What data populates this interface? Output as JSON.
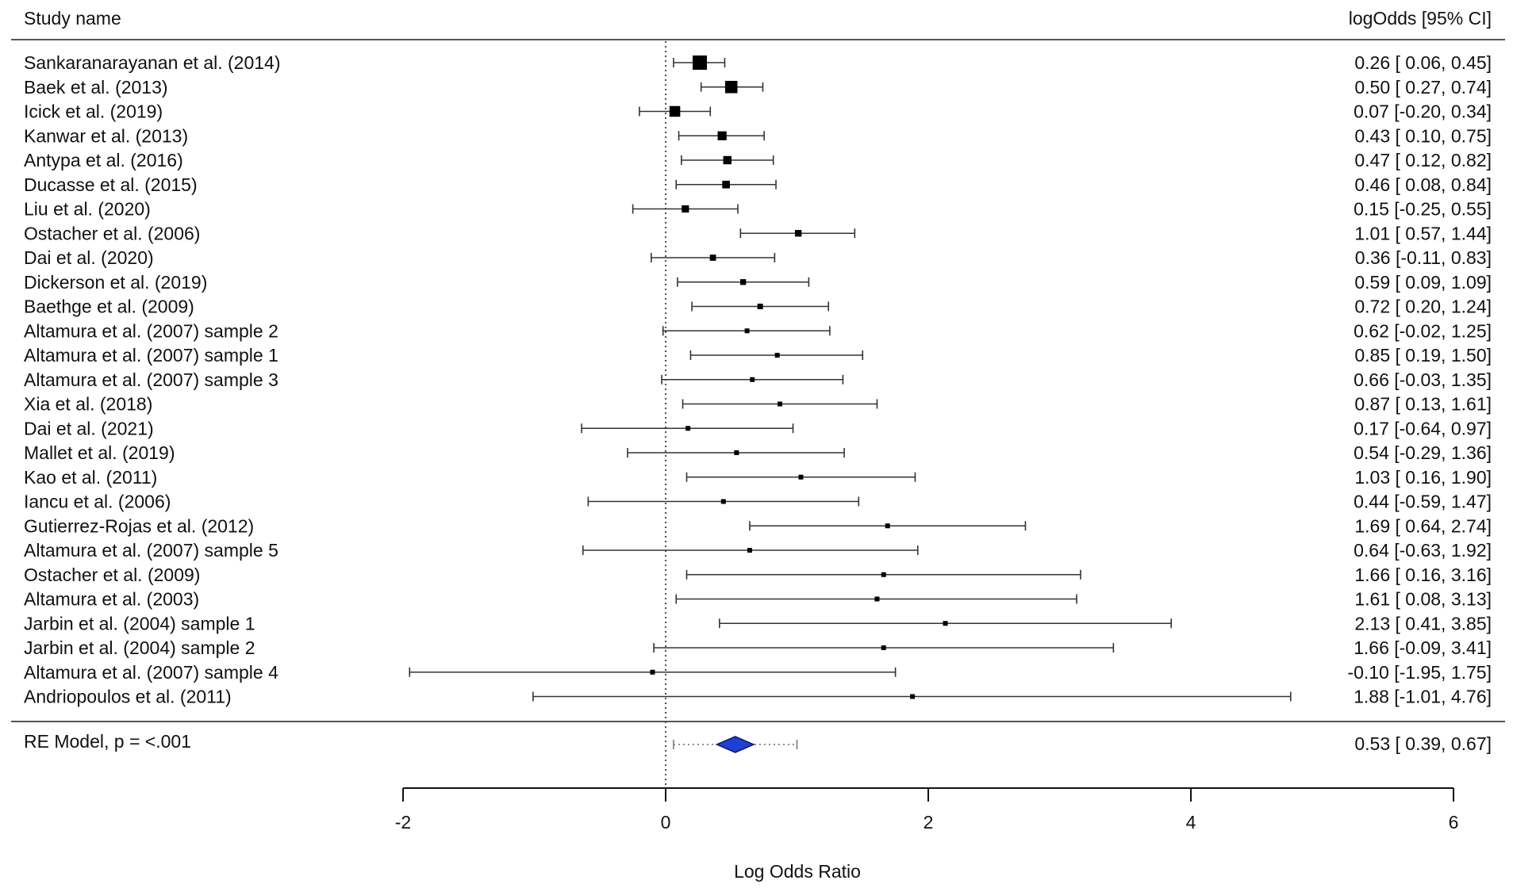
{
  "chart_data": {
    "type": "forest",
    "header": {
      "study_label": "Study name",
      "estimate_label": "logOdds [95% CI]"
    },
    "xlabel": "Log Odds Ratio",
    "xlim": [
      -2,
      6
    ],
    "xticks": [
      -2,
      0,
      2,
      4,
      6
    ],
    "reference_line": 0,
    "studies": [
      {
        "name": "Sankaranarayanan et al. (2014)",
        "estimate": 0.26,
        "lower": 0.06,
        "upper": 0.45,
        "text": "0.26 [ 0.06, 0.45]"
      },
      {
        "name": "Baek et al. (2013)",
        "estimate": 0.5,
        "lower": 0.27,
        "upper": 0.74,
        "text": "0.50 [ 0.27, 0.74]"
      },
      {
        "name": "Icick et al. (2019)",
        "estimate": 0.07,
        "lower": -0.2,
        "upper": 0.34,
        "text": "0.07 [-0.20, 0.34]"
      },
      {
        "name": "Kanwar et al. (2013)",
        "estimate": 0.43,
        "lower": 0.1,
        "upper": 0.75,
        "text": "0.43 [ 0.10, 0.75]"
      },
      {
        "name": "Antypa et al. (2016)",
        "estimate": 0.47,
        "lower": 0.12,
        "upper": 0.82,
        "text": "0.47 [ 0.12, 0.82]"
      },
      {
        "name": "Ducasse et al. (2015)",
        "estimate": 0.46,
        "lower": 0.08,
        "upper": 0.84,
        "text": "0.46 [ 0.08, 0.84]"
      },
      {
        "name": "Liu et al. (2020)",
        "estimate": 0.15,
        "lower": -0.25,
        "upper": 0.55,
        "text": "0.15 [-0.25, 0.55]"
      },
      {
        "name": "Ostacher et al. (2006)",
        "estimate": 1.01,
        "lower": 0.57,
        "upper": 1.44,
        "text": "1.01 [ 0.57, 1.44]"
      },
      {
        "name": "Dai et al. (2020)",
        "estimate": 0.36,
        "lower": -0.11,
        "upper": 0.83,
        "text": "0.36 [-0.11, 0.83]"
      },
      {
        "name": "Dickerson et al. (2019)",
        "estimate": 0.59,
        "lower": 0.09,
        "upper": 1.09,
        "text": "0.59 [ 0.09, 1.09]"
      },
      {
        "name": "Baethge et al. (2009)",
        "estimate": 0.72,
        "lower": 0.2,
        "upper": 1.24,
        "text": "0.72 [ 0.20, 1.24]"
      },
      {
        "name": "Altamura et al. (2007) sample 2",
        "estimate": 0.62,
        "lower": -0.02,
        "upper": 1.25,
        "text": "0.62 [-0.02, 1.25]"
      },
      {
        "name": "Altamura et al. (2007) sample 1",
        "estimate": 0.85,
        "lower": 0.19,
        "upper": 1.5,
        "text": "0.85 [ 0.19, 1.50]"
      },
      {
        "name": "Altamura et al. (2007) sample 3",
        "estimate": 0.66,
        "lower": -0.03,
        "upper": 1.35,
        "text": "0.66 [-0.03, 1.35]"
      },
      {
        "name": "Xia et al. (2018)",
        "estimate": 0.87,
        "lower": 0.13,
        "upper": 1.61,
        "text": "0.87 [ 0.13, 1.61]"
      },
      {
        "name": "Dai et al. (2021)",
        "estimate": 0.17,
        "lower": -0.64,
        "upper": 0.97,
        "text": "0.17 [-0.64, 0.97]"
      },
      {
        "name": "Mallet et al. (2019)",
        "estimate": 0.54,
        "lower": -0.29,
        "upper": 1.36,
        "text": "0.54 [-0.29, 1.36]"
      },
      {
        "name": "Kao et al. (2011)",
        "estimate": 1.03,
        "lower": 0.16,
        "upper": 1.9,
        "text": "1.03 [ 0.16, 1.90]"
      },
      {
        "name": "Iancu et al. (2006)",
        "estimate": 0.44,
        "lower": -0.59,
        "upper": 1.47,
        "text": "0.44 [-0.59, 1.47]"
      },
      {
        "name": "Gutierrez-Rojas et al. (2012)",
        "estimate": 1.69,
        "lower": 0.64,
        "upper": 2.74,
        "text": "1.69 [ 0.64, 2.74]"
      },
      {
        "name": "Altamura et al. (2007) sample 5",
        "estimate": 0.64,
        "lower": -0.63,
        "upper": 1.92,
        "text": "0.64 [-0.63, 1.92]"
      },
      {
        "name": "Ostacher et al. (2009)",
        "estimate": 1.66,
        "lower": 0.16,
        "upper": 3.16,
        "text": "1.66 [ 0.16, 3.16]"
      },
      {
        "name": "Altamura et al. (2003)",
        "estimate": 1.61,
        "lower": 0.08,
        "upper": 3.13,
        "text": "1.61 [ 0.08, 3.13]"
      },
      {
        "name": "Jarbin et al. (2004) sample 1",
        "estimate": 2.13,
        "lower": 0.41,
        "upper": 3.85,
        "text": "2.13 [ 0.41, 3.85]"
      },
      {
        "name": "Jarbin et al. (2004) sample 2",
        "estimate": 1.66,
        "lower": -0.09,
        "upper": 3.41,
        "text": "1.66 [-0.09, 3.41]"
      },
      {
        "name": "Altamura et al. (2007) sample 4",
        "estimate": -0.1,
        "lower": -1.95,
        "upper": 1.75,
        "text": "-0.10 [-1.95, 1.75]"
      },
      {
        "name": "Andriopoulos et al. (2011)",
        "estimate": 1.88,
        "lower": -1.01,
        "upper": 4.76,
        "text": "1.88 [-1.01, 4.76]"
      }
    ],
    "summary": {
      "label": "RE Model, p = <.001",
      "estimate": 0.53,
      "lower": 0.39,
      "upper": 0.67,
      "text": "0.53 [ 0.39, 0.67]",
      "prediction_interval": [
        0.06,
        1.0
      ]
    },
    "colors": {
      "marker": "#000000",
      "summary_fill": "#1f3fd6",
      "summary_stroke": "#0a1a6e",
      "line": "#333333"
    }
  }
}
